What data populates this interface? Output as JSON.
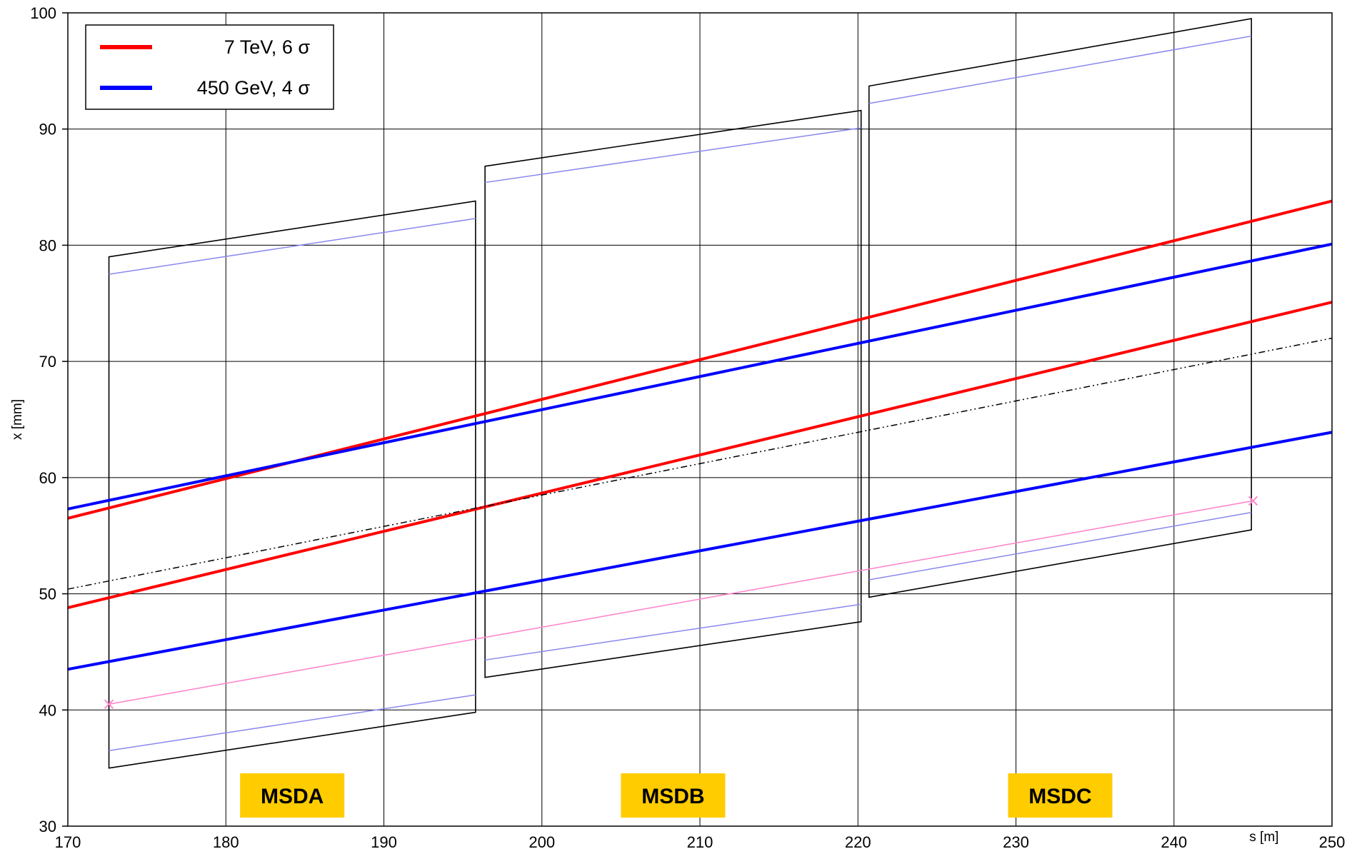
{
  "chart_data": {
    "type": "line",
    "xlabel": "s [m]",
    "ylabel": "x [mm]",
    "xlim": [
      170,
      250
    ],
    "ylim": [
      30,
      100
    ],
    "x_ticks": [
      "170",
      "180",
      "190",
      "200",
      "210",
      "220",
      "230",
      "240",
      "250"
    ],
    "y_ticks": [
      "30",
      "40",
      "50",
      "60",
      "70",
      "80",
      "90",
      "100"
    ],
    "grid": true,
    "legend_position": "top-left",
    "legend": [
      {
        "label": "7 TeV,  6 σ",
        "color": "#ff0000"
      },
      {
        "label": "450 GeV,  4 σ",
        "color": "#0000ff"
      }
    ],
    "series": [
      {
        "group": "7 TeV,  6 σ",
        "color": "#ff0000",
        "x": [
          170,
          250
        ],
        "y": [
          56.5,
          83.8
        ]
      },
      {
        "group": "7 TeV,  6 σ",
        "color": "#ff0000",
        "x": [
          170,
          250
        ],
        "y": [
          48.8,
          75.1
        ]
      },
      {
        "group": "450 GeV,  4 σ",
        "color": "#0000ff",
        "x": [
          170,
          250
        ],
        "y": [
          57.3,
          80.1
        ]
      },
      {
        "group": "450 GeV,  4 σ",
        "color": "#0000ff",
        "x": [
          170,
          250
        ],
        "y": [
          43.5,
          63.9
        ]
      },
      {
        "style": "dash-dot",
        "color": "#000000",
        "x": [
          170,
          250
        ],
        "y": [
          50.4,
          72.0
        ]
      },
      {
        "style": "thin",
        "color": "#ff88cc",
        "x": [
          172.6,
          245.0
        ],
        "y": [
          40.5,
          58.0
        ],
        "markers": "x"
      }
    ],
    "magnets": [
      {
        "label": "MSDA",
        "outline": {
          "s_entry": 172.6,
          "s_exit": 195.8,
          "bottom": [
            35.0,
            39.8
          ],
          "top": [
            79.0,
            83.8
          ]
        },
        "inner_lines": {
          "bottom": [
            36.5,
            41.3
          ],
          "top": [
            77.5,
            82.3
          ]
        }
      },
      {
        "label": "MSDB",
        "outline": {
          "s_entry": 196.4,
          "s_exit": 220.2,
          "bottom": [
            42.8,
            47.6
          ],
          "top": [
            86.8,
            91.6
          ]
        },
        "inner_lines": {
          "bottom": [
            44.3,
            49.1
          ],
          "top": [
            85.4,
            90.1
          ]
        }
      },
      {
        "label": "MSDC",
        "outline": {
          "s_entry": 220.7,
          "s_exit": 244.9,
          "bottom": [
            49.7,
            55.5
          ],
          "top": [
            93.7,
            99.5
          ]
        },
        "inner_lines": {
          "bottom": [
            51.2,
            57.0
          ],
          "top": [
            92.2,
            98.0
          ]
        }
      }
    ],
    "label_box_color": "#ffcc00"
  }
}
